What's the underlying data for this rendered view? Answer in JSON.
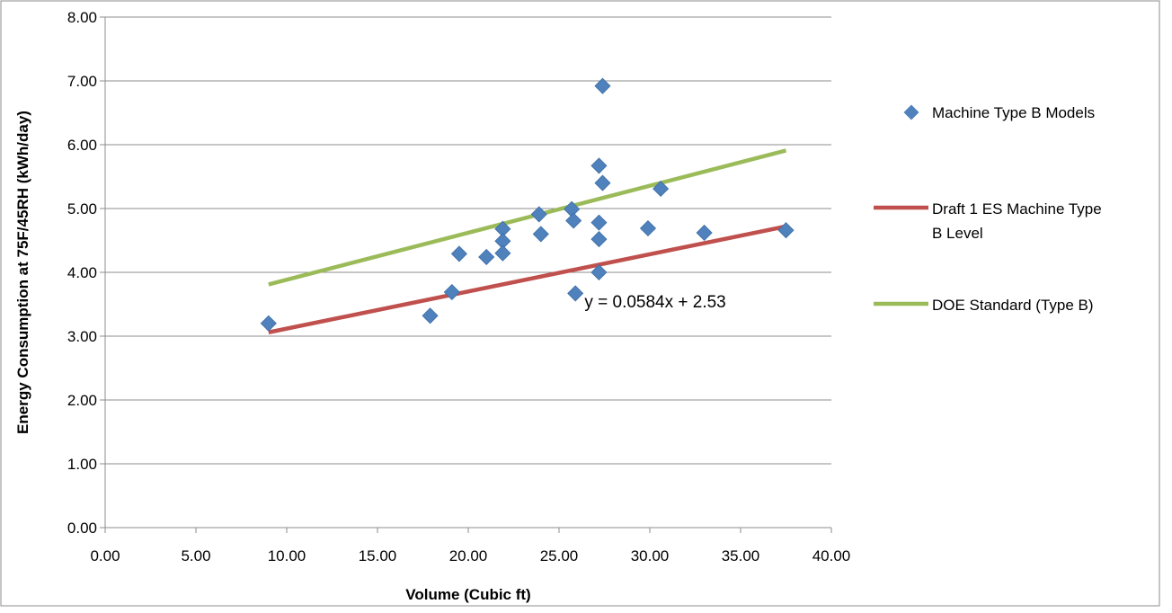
{
  "chart_data": {
    "type": "scatter",
    "title": "",
    "xlabel": "Volume (Cubic ft)",
    "ylabel": "Energy Consumption at 75F/45RH (kWh/day)",
    "xlim": [
      0,
      40
    ],
    "ylim": [
      0,
      8
    ],
    "x_ticks": [
      "0.00",
      "5.00",
      "10.00",
      "15.00",
      "20.00",
      "25.00",
      "30.00",
      "35.00",
      "40.00"
    ],
    "y_ticks": [
      "0.00",
      "1.00",
      "2.00",
      "3.00",
      "4.00",
      "5.00",
      "6.00",
      "7.00",
      "8.00"
    ],
    "grid": "horizontal",
    "legend_position": "right",
    "series": [
      {
        "name": "Machine Type B Models",
        "kind": "scatter",
        "marker": "diamond",
        "color": "#4F81BD",
        "points": [
          [
            9.0,
            3.2
          ],
          [
            17.9,
            3.32
          ],
          [
            19.1,
            3.69
          ],
          [
            19.5,
            4.29
          ],
          [
            21.0,
            4.24
          ],
          [
            21.9,
            4.68
          ],
          [
            21.9,
            4.49
          ],
          [
            21.9,
            4.3
          ],
          [
            23.9,
            4.91
          ],
          [
            24.0,
            4.6
          ],
          [
            25.7,
            4.99
          ],
          [
            25.8,
            4.81
          ],
          [
            25.9,
            3.67
          ],
          [
            27.2,
            5.67
          ],
          [
            27.2,
            4.78
          ],
          [
            27.2,
            4.52
          ],
          [
            27.2,
            4.0
          ],
          [
            27.4,
            6.92
          ],
          [
            27.4,
            5.4
          ],
          [
            29.9,
            4.69
          ],
          [
            30.6,
            5.31
          ],
          [
            33.0,
            4.62
          ],
          [
            37.5,
            4.66
          ]
        ]
      },
      {
        "name": "Draft 1 ES Machine Type B Level",
        "kind": "line",
        "color": "#C0504D",
        "points": [
          [
            9.0,
            3.06
          ],
          [
            37.5,
            4.72
          ]
        ]
      },
      {
        "name": "DOE Standard (Type B)",
        "kind": "line",
        "color": "#9BBB59",
        "points": [
          [
            9.0,
            3.81
          ],
          [
            37.5,
            5.91
          ]
        ]
      }
    ],
    "annotations": [
      {
        "text": "y = 0.0584x + 2.53",
        "x": 30.3,
        "y": 3.45
      }
    ]
  }
}
